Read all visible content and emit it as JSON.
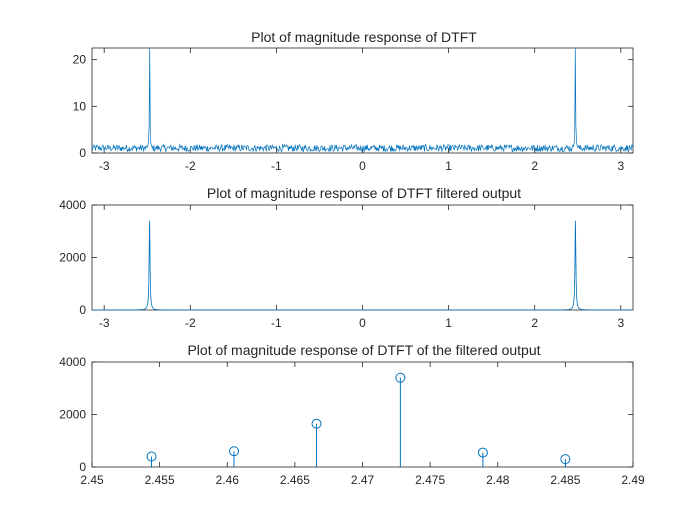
{
  "colors": {
    "series": "#0072BD",
    "axes": "#262626",
    "background": "#ffffff"
  },
  "chart_data": [
    {
      "type": "line",
      "title": "Plot of magnitude response of DTFT",
      "xlim": [
        -3.14159,
        3.14159
      ],
      "ylim": [
        0,
        22.5
      ],
      "xticks": [
        -3,
        -2,
        -1,
        0,
        1,
        2,
        3
      ],
      "xtick_labels": [
        "-3",
        "-2",
        "-1",
        "0",
        "1",
        "2",
        "3"
      ],
      "yticks": [
        0,
        10,
        20
      ],
      "ytick_labels": [
        "0",
        "10",
        "20"
      ],
      "grid": false,
      "description_of_series": "noise floor about 0.3 to 1.8 with sharp peaks at about ±2.473",
      "series": [
        {
          "noise_floor_range": [
            0.3,
            1.8
          ],
          "peaks": [
            {
              "x": -2.473,
              "y": 22.5
            },
            {
              "x": 2.473,
              "y": 22.5
            }
          ]
        }
      ]
    },
    {
      "type": "line",
      "title": "Plot of magnitude response of DTFT filtered output",
      "xlim": [
        -3.14159,
        3.14159
      ],
      "ylim": [
        0,
        4000
      ],
      "xticks": [
        -3,
        -2,
        -1,
        0,
        1,
        2,
        3
      ],
      "xtick_labels": [
        "-3",
        "-2",
        "-1",
        "0",
        "1",
        "2",
        "3"
      ],
      "yticks": [
        0,
        2000,
        4000
      ],
      "ytick_labels": [
        "0",
        "2000",
        "4000"
      ],
      "grid": false,
      "series": [
        {
          "baseline": 0,
          "peaks": [
            {
              "x": -2.473,
              "y": 3400
            },
            {
              "x": 2.473,
              "y": 3400
            }
          ]
        }
      ]
    },
    {
      "type": "scatter",
      "style": "stem",
      "title": "Plot of magnitude response of DTFT of the filtered output",
      "xlim": [
        2.45,
        2.49
      ],
      "ylim": [
        0,
        4000
      ],
      "xticks": [
        2.45,
        2.455,
        2.46,
        2.465,
        2.47,
        2.475,
        2.48,
        2.485,
        2.49
      ],
      "xtick_labels": [
        "2.45",
        "2.455",
        "2.46",
        "2.465",
        "2.47",
        "2.475",
        "2.48",
        "2.485",
        "2.49"
      ],
      "yticks": [
        0,
        2000,
        4000
      ],
      "ytick_labels": [
        "0",
        "2000",
        "4000"
      ],
      "grid": false,
      "series": [
        {
          "x": [
            2.4544,
            2.4605,
            2.4666,
            2.4728,
            2.4789,
            2.485
          ],
          "y": [
            400,
            600,
            1650,
            3400,
            550,
            300
          ]
        }
      ]
    }
  ]
}
